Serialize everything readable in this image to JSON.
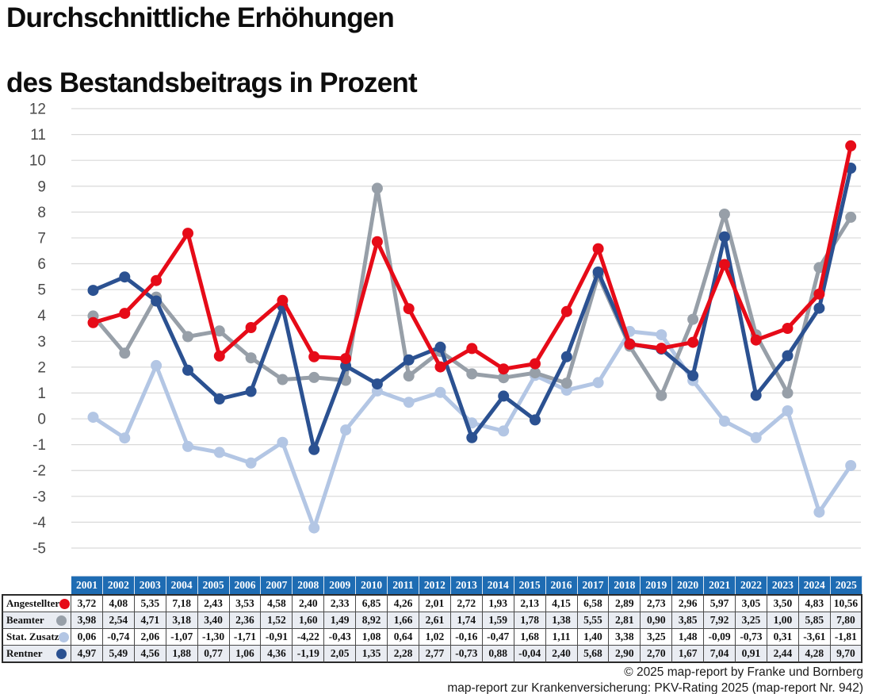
{
  "title": {
    "line1": "Durchschnittliche Erhöhungen",
    "line2": "des Bestandsbeitrags in Prozent"
  },
  "colors": {
    "angestellter_red": "#e60b18",
    "beamter_gray": "#979fa8",
    "stat_zusatz_lightblue": "#b3c6e4",
    "rentner_darkblue": "#2b5191",
    "table_header_blue": "#1e6cb3",
    "table_alt_row": "#e9ecf2",
    "gridline": "#d9d9d9",
    "axis_label": "#4a4a4a"
  },
  "chart_data": {
    "type": "line",
    "title": "Durchschnittliche Erhöhungen des Bestandsbeitrags in Prozent",
    "xlabel": "",
    "ylabel": "",
    "x": [
      2001,
      2002,
      2003,
      2004,
      2005,
      2006,
      2007,
      2008,
      2009,
      2010,
      2011,
      2012,
      2013,
      2014,
      2015,
      2016,
      2017,
      2018,
      2019,
      2020,
      2021,
      2022,
      2023,
      2024,
      2025
    ],
    "ylim": [
      -5,
      12
    ],
    "ytick_step": 1,
    "y_tick_labels": [
      "12",
      "11",
      "10",
      "9",
      "8",
      "7",
      "6",
      "5",
      "4",
      "3",
      "2",
      "1",
      "0",
      "-1",
      "-2",
      "-3",
      "-4",
      "-5"
    ],
    "grid": "horizontal-only",
    "legend_position": "table-left-column",
    "draw_order": [
      "Stat. Zusatz",
      "Beamter",
      "Rentner",
      "Angestellter"
    ],
    "series": [
      {
        "name": "Angestellter",
        "color": "#e60b18",
        "values": [
          3.72,
          4.08,
          5.35,
          7.18,
          2.43,
          3.53,
          4.58,
          2.4,
          2.33,
          6.85,
          4.26,
          2.01,
          2.72,
          1.93,
          2.13,
          4.15,
          6.58,
          2.89,
          2.73,
          2.96,
          5.97,
          3.05,
          3.5,
          4.83,
          10.56
        ]
      },
      {
        "name": "Beamter",
        "color": "#979fa8",
        "values": [
          3.98,
          2.54,
          4.71,
          3.18,
          3.4,
          2.36,
          1.52,
          1.6,
          1.49,
          8.92,
          1.66,
          2.61,
          1.74,
          1.59,
          1.78,
          1.38,
          5.55,
          2.81,
          0.9,
          3.85,
          7.92,
          3.25,
          1.0,
          5.85,
          7.8
        ]
      },
      {
        "name": "Stat. Zusatz",
        "color": "#b3c6e4",
        "values": [
          0.06,
          -0.74,
          2.06,
          -1.07,
          -1.3,
          -1.71,
          -0.91,
          -4.22,
          -0.43,
          1.08,
          0.64,
          1.02,
          -0.16,
          -0.47,
          1.68,
          1.11,
          1.4,
          3.38,
          3.25,
          1.48,
          -0.09,
          -0.73,
          0.31,
          -3.61,
          -1.81
        ]
      },
      {
        "name": "Rentner",
        "color": "#2b5191",
        "values": [
          4.97,
          5.49,
          4.56,
          1.88,
          0.77,
          1.06,
          4.36,
          -1.19,
          2.05,
          1.35,
          2.28,
          2.77,
          -0.73,
          0.88,
          -0.04,
          2.4,
          5.68,
          2.9,
          2.7,
          1.67,
          7.04,
          0.91,
          2.44,
          4.28,
          9.7
        ]
      }
    ]
  },
  "table": {
    "years": [
      "2001",
      "2002",
      "2003",
      "2004",
      "2005",
      "2006",
      "2007",
      "2008",
      "2009",
      "2010",
      "2011",
      "2012",
      "2013",
      "2014",
      "2015",
      "2016",
      "2017",
      "2018",
      "2019",
      "2020",
      "2021",
      "2022",
      "2023",
      "2024",
      "2025"
    ],
    "rows": [
      {
        "label": "Angestellter",
        "marker_color": "#e60b18",
        "values": [
          "3,72",
          "4,08",
          "5,35",
          "7,18",
          "2,43",
          "3,53",
          "4,58",
          "2,40",
          "2,33",
          "6,85",
          "4,26",
          "2,01",
          "2,72",
          "1,93",
          "2,13",
          "4,15",
          "6,58",
          "2,89",
          "2,73",
          "2,96",
          "5,97",
          "3,05",
          "3,50",
          "4,83",
          "10,56"
        ]
      },
      {
        "label": "Beamter",
        "marker_color": "#979fa8",
        "values": [
          "3,98",
          "2,54",
          "4,71",
          "3,18",
          "3,40",
          "2,36",
          "1,52",
          "1,60",
          "1,49",
          "8,92",
          "1,66",
          "2,61",
          "1,74",
          "1,59",
          "1,78",
          "1,38",
          "5,55",
          "2,81",
          "0,90",
          "3,85",
          "7,92",
          "3,25",
          "1,00",
          "5,85",
          "7,80"
        ]
      },
      {
        "label": "Stat. Zusatz",
        "marker_color": "#b3c6e4",
        "values": [
          "0,06",
          "-0,74",
          "2,06",
          "-1,07",
          "-1,30",
          "-1,71",
          "-0,91",
          "-4,22",
          "-0,43",
          "1,08",
          "0,64",
          "1,02",
          "-0,16",
          "-0,47",
          "1,68",
          "1,11",
          "1,40",
          "3,38",
          "3,25",
          "1,48",
          "-0,09",
          "-0,73",
          "0,31",
          "-3,61",
          "-1,81"
        ]
      },
      {
        "label": "Rentner",
        "marker_color": "#2b5191",
        "values": [
          "4,97",
          "5,49",
          "4,56",
          "1,88",
          "0,77",
          "1,06",
          "4,36",
          "-1,19",
          "2,05",
          "1,35",
          "2,28",
          "2,77",
          "-0,73",
          "0,88",
          "-0,04",
          "2,40",
          "5,68",
          "2,90",
          "2,70",
          "1,67",
          "7,04",
          "0,91",
          "2,44",
          "4,28",
          "9,70"
        ]
      }
    ]
  },
  "footer": {
    "line1": "© 2025 map-report by Franke und Bornberg",
    "line2": "map-report zur Krankenversicherung: PKV-Rating 2025 (map-report Nr. 942)"
  }
}
